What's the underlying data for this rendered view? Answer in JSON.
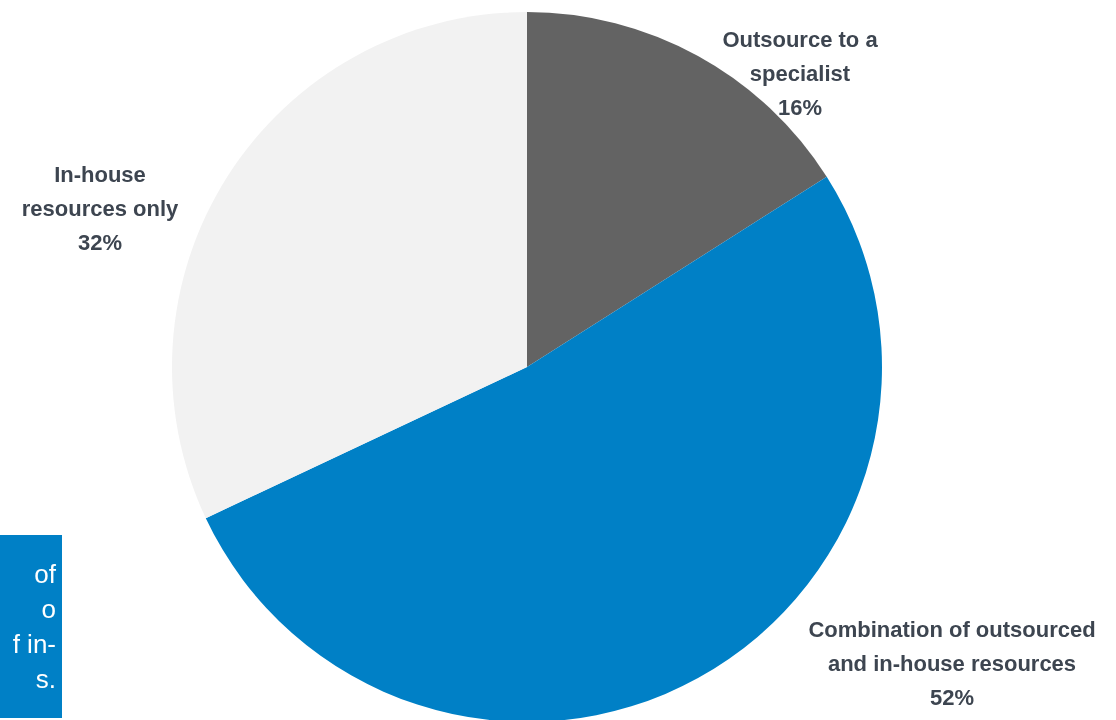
{
  "chart_data": {
    "type": "pie",
    "categories": [
      "Outsource to a\nspecialist",
      "Combination of outsourced\nand in-house resources",
      "In-house\nresources only"
    ],
    "values": [
      16,
      52,
      32
    ],
    "value_labels": [
      "16%",
      "52%",
      "32%"
    ],
    "colors": [
      "#636363",
      "#0080c6",
      "#f2f2f2"
    ],
    "annotations": [
      "of",
      "o",
      "f in-",
      "s."
    ]
  }
}
